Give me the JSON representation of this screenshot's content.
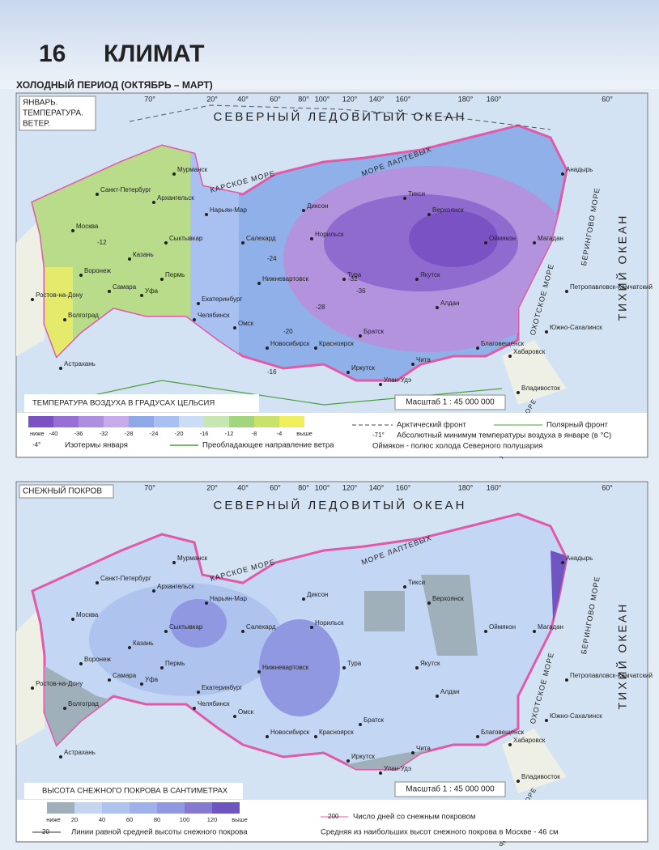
{
  "header": {
    "number": "16",
    "title": "КЛИМАТ"
  },
  "section_title": "ХОЛОДНЫЙ ПЕРИОД (ОКТЯБРЬ – МАРТ)",
  "longitudes": [
    "70°",
    "20°",
    "40°",
    "60°",
    "80°",
    "100°",
    "120°",
    "140°",
    "160°",
    "180°",
    "160°",
    "60°"
  ],
  "seas": [
    "СЕВЕРНЫЙ ЛЕДОВИТЫЙ ОКЕАН",
    "ТИХИЙ ОКЕАН",
    "КАРСКОЕ МОРЕ",
    "МОРЕ ЛАПТЕВЫХ",
    "ОХОТСКОЕ МОРЕ",
    "БЕРИНГОВО МОРЕ",
    "ЯПОНСКОЕ МОРЕ"
  ],
  "cities": [
    "Москва",
    "Санкт-Петербург",
    "Мурманск",
    "Архангельск",
    "Сыктывкар",
    "Пермь",
    "Екатеринбург",
    "Челябинск",
    "Омск",
    "Новосибирск",
    "Красноярск",
    "Иркутск",
    "Улан-Удэ",
    "Чита",
    "Братск",
    "Тура",
    "Норильск",
    "Диксон",
    "Салехард",
    "Нарьян-Мар",
    "Тикси",
    "Верхоянск",
    "Якутск",
    "Оймякон",
    "Магадан",
    "Анадырь",
    "Петропавловск-Камчатский",
    "Хабаровск",
    "Владивосток",
    "Благовещенск",
    "Южно-Сахалинск",
    "Алдан",
    "Ростов-на-Дону",
    "Астрахань",
    "Самара",
    "Казань",
    "Воронеж",
    "Волгоград",
    "Уфа",
    "Нижневартовск"
  ],
  "temperature_map": {
    "label": [
      "ЯНВАРЬ.",
      "ТЕМПЕРАТУРА.",
      "ВЕТЕР."
    ],
    "isotherm_labels": [
      "-36",
      "-32",
      "-28",
      "-24",
      "-20",
      "-16",
      "-12"
    ],
    "legend": {
      "title": "ТЕМПЕРАТУРА ВОЗДУХА В ГРАДУСАХ ЦЕЛЬСИЯ",
      "scale": "Масштаб 1 : 45 000 000",
      "colors": [
        "#7b52c4",
        "#9670d2",
        "#ae8ede",
        "#c6aaea",
        "#8fa9e8",
        "#a9c1f1",
        "#cbdcf6",
        "#c6e6b2",
        "#a3d57f",
        "#c8e26a",
        "#eeef5a"
      ],
      "labels": [
        "ниже",
        "-40",
        "-36",
        "-32",
        "-28",
        "-24",
        "-20",
        "-16",
        "-12",
        "-8",
        "-4",
        "выше"
      ],
      "arctic_front": "Арктический фронт",
      "polar_front": "Полярный фронт",
      "isotherm_sample": "-4°",
      "isotherm": "Изотермы января",
      "wind": "Преобладающее направление ветра",
      "min_sample": "-71°",
      "min": "Абсолютный минимум температуры воздуха в январе (в °С)",
      "pole": "Оймякон - полюс холода Северного полушария"
    }
  },
  "snow_map": {
    "label": "СНЕЖНЫЙ ПОКРОВ",
    "legend": {
      "title": "ВЫСОТА СНЕЖНОГО ПОКРОВА В САНТИМЕТРАХ",
      "scale": "Масштаб 1 : 45 000 000",
      "colors": [
        "#9fb0bb",
        "#c4d6ef",
        "#aec4ee",
        "#9fb1ea",
        "#8f98e0",
        "#8579d2",
        "#6f55c0"
      ],
      "labels": [
        "ниже",
        "20",
        "40",
        "60",
        "80",
        "100",
        "120",
        "выше"
      ],
      "days_sample": "200",
      "days": "Число дней со снежным покровом",
      "line_sample": "20",
      "lines": "Линии равной средней высоты снежного покрова",
      "moscow": "Средняя из наибольших высот снежного покрова в Москве - 46 см"
    }
  }
}
